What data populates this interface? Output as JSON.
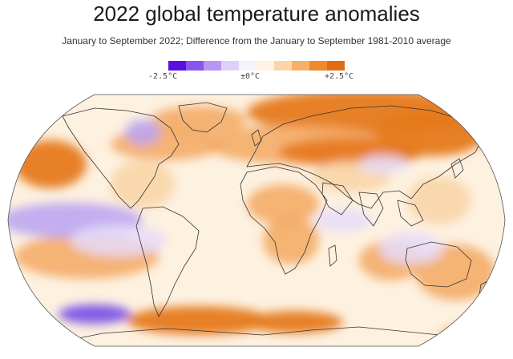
{
  "title": "2022 global temperature anomalies",
  "subtitle": "January to September 2022; Difference from the January to September 1981-2010 average",
  "legend": {
    "labels": [
      "-2.5°C",
      "±0°C",
      "+2.5°C"
    ],
    "colors": [
      "#5a10e0",
      "#8a55ee",
      "#b894f4",
      "#ddd0fa",
      "#f6f0ff",
      "#fff3e2",
      "#fbd6a8",
      "#f7b068",
      "#f0882c",
      "#e06e10"
    ]
  },
  "colors": {
    "ocean_base": "#fdf1e0",
    "warm_strong": "#e67a1c",
    "warm_mid": "#f3a860",
    "warm_light": "#f9d3a6",
    "cool_light": "#e6dcfa",
    "cool_mid": "#b9a2f2",
    "cool_strong": "#7b52e6",
    "coastline": "#333333"
  }
}
